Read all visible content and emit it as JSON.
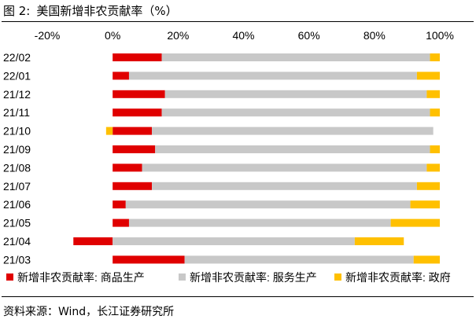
{
  "figure": {
    "label": "图 2:",
    "title": "美国新增非农贡献率（%）",
    "source": "资料来源：Wind，长江证券研究所"
  },
  "chart_data": {
    "type": "bar",
    "orientation": "horizontal",
    "stacked": true,
    "categories": [
      "22/02",
      "22/01",
      "21/12",
      "21/11",
      "21/10",
      "21/09",
      "21/08",
      "21/07",
      "21/06",
      "21/05",
      "21/04",
      "21/03"
    ],
    "series": [
      {
        "name": "新增非农贡献率: 商品生产",
        "color": "#e00000",
        "values": [
          15,
          5,
          16,
          15,
          12,
          13,
          9,
          12,
          4,
          5,
          -12,
          22
        ]
      },
      {
        "name": "新增非农贡献率: 服务生产",
        "color": "#c8c8c8",
        "values": [
          82,
          88,
          80,
          82,
          86,
          84,
          87,
          81,
          87,
          80,
          74,
          70
        ]
      },
      {
        "name": "新增非农贡献率: 政府",
        "color": "#ffc000",
        "values": [
          3,
          7,
          4,
          3,
          -2,
          3,
          4,
          7,
          9,
          15,
          15,
          8
        ]
      }
    ],
    "xlim": [
      -20,
      100
    ],
    "xticks": [
      -20,
      0,
      20,
      40,
      60,
      80,
      100
    ],
    "xtick_labels": [
      "-20%",
      "0%",
      "20%",
      "40%",
      "60%",
      "80%",
      "100%"
    ],
    "axis_position": "top",
    "legend_position": "bottom",
    "grid": false
  }
}
